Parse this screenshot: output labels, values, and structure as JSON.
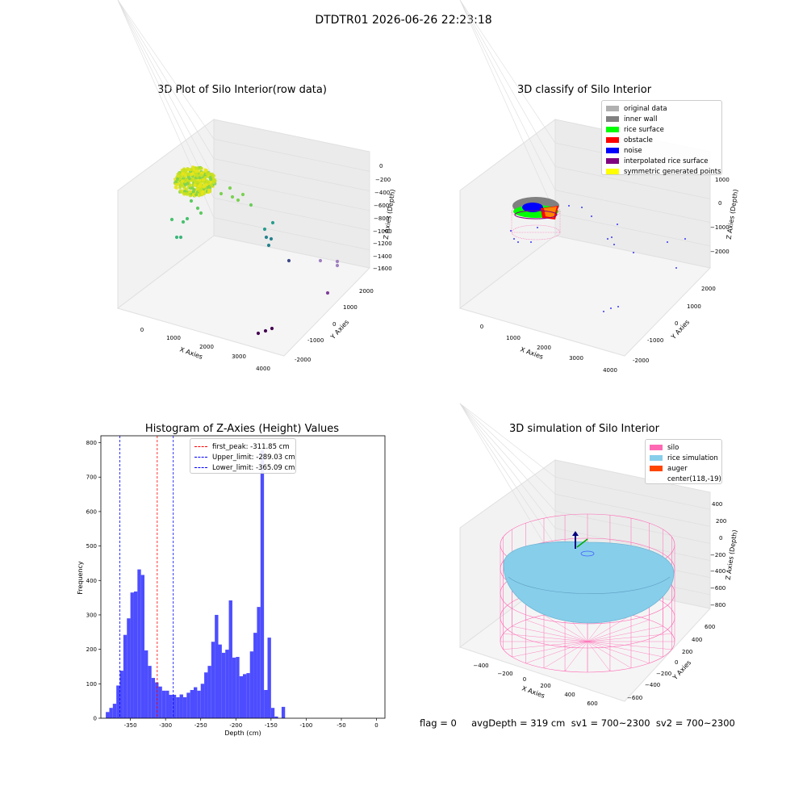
{
  "figure": {
    "suptitle": "DTDTR01 2026-06-26 22:23:18",
    "footer": "flag = 0     avgDepth = 319 cm  sv1 = 700~2300  sv2 = 700~2300"
  },
  "colors": {
    "original": "#b0b0b0",
    "inner_wall": "#808080",
    "rice_surface": "#00ff00",
    "obstacle": "#ff0000",
    "noise": "#0000ff",
    "interpolated": "#800080",
    "symmetric": "#ffff00",
    "silo": "#ff69b4",
    "rice_sim": "#87ceeb",
    "auger": "#ff4500",
    "hist_bar": "#4d4dff"
  },
  "chart_data": [
    {
      "type": "scatter",
      "title": "3D Plot of Silo Interior(row data)",
      "xlabel": "X Axies",
      "ylabel": "Y Axies",
      "zlabel": "Z Axies (Depth)",
      "x_ticks": [
        "0",
        "1000",
        "2000",
        "3000",
        "4000"
      ],
      "y_ticks": [
        "2000",
        "1000",
        "0",
        "-1000",
        "-2000"
      ],
      "z_ticks": [
        "0",
        "−200",
        "−400",
        "−600",
        "−800",
        "−1000",
        "−1200",
        "−1400",
        "−1600"
      ]
    },
    {
      "type": "scatter",
      "title": "3D classify of Silo Interior",
      "xlabel": "X Axies",
      "ylabel": "Y Axies",
      "zlabel": "Z Axies (Depth)",
      "x_ticks": [
        "0",
        "1000",
        "2000",
        "3000",
        "4000"
      ],
      "y_ticks": [
        "2000",
        "1000",
        "0",
        "-1000",
        "-2000"
      ],
      "z_ticks": [
        "1000",
        "0",
        "−1000",
        "−2000"
      ],
      "legend": [
        "original data",
        "inner wall",
        "rice surface",
        "obstacle",
        "noise",
        "interpolated rice surface",
        "symmetric generated points"
      ],
      "legend_position": "top-right"
    },
    {
      "type": "bar",
      "title": "Histogram of Z-Axies (Height) Values",
      "xlabel": "Depth (cm)",
      "ylabel": "Frequency",
      "xlim": [
        -392,
        12
      ],
      "ylim": [
        0,
        820
      ],
      "x_ticks": [
        -350,
        -300,
        -250,
        -200,
        -150,
        -100,
        -50,
        0
      ],
      "y_ticks": [
        0,
        100,
        200,
        300,
        400,
        500,
        600,
        700,
        800
      ],
      "bin_width": 5,
      "bins": [
        [
          -382.5,
          18
        ],
        [
          -377.5,
          30
        ],
        [
          -372.5,
          42
        ],
        [
          -367.5,
          95
        ],
        [
          -362.5,
          138
        ],
        [
          -357.5,
          242
        ],
        [
          -352.5,
          290
        ],
        [
          -347.5,
          365
        ],
        [
          -342.5,
          368
        ],
        [
          -337.5,
          432
        ],
        [
          -332.5,
          416
        ],
        [
          -327.5,
          197
        ],
        [
          -322.5,
          152
        ],
        [
          -317.5,
          117
        ],
        [
          -312.5,
          104
        ],
        [
          -307.5,
          92
        ],
        [
          -302.5,
          80
        ],
        [
          -297.5,
          80
        ],
        [
          -292.5,
          68
        ],
        [
          -287.5,
          68
        ],
        [
          -282.5,
          61
        ],
        [
          -277.5,
          69
        ],
        [
          -272.5,
          61
        ],
        [
          -267.5,
          74
        ],
        [
          -262.5,
          82
        ],
        [
          -257.5,
          90
        ],
        [
          -252.5,
          80
        ],
        [
          -247.5,
          100
        ],
        [
          -242.5,
          133
        ],
        [
          -237.5,
          152
        ],
        [
          -232.5,
          222
        ],
        [
          -227.5,
          300
        ],
        [
          -222.5,
          214
        ],
        [
          -217.5,
          190
        ],
        [
          -212.5,
          199
        ],
        [
          -207.5,
          342
        ],
        [
          -202.5,
          176
        ],
        [
          -197.5,
          178
        ],
        [
          -192.5,
          122
        ],
        [
          -187.5,
          128
        ],
        [
          -182.5,
          131
        ],
        [
          -177.5,
          194
        ],
        [
          -172.5,
          248
        ],
        [
          -167.5,
          323
        ],
        [
          -162.5,
          778
        ],
        [
          -157.5,
          82
        ],
        [
          -152.5,
          234
        ],
        [
          -147.5,
          30
        ],
        [
          -142.5,
          5
        ],
        [
          -137.5,
          0
        ],
        [
          -132.5,
          33
        ]
      ],
      "vlines": [
        {
          "x": -311.85,
          "label": "first_peak: -311.85 cm",
          "color": "#ff0000"
        },
        {
          "x": -289.03,
          "label": "Upper_limit: -289.03 cm",
          "color": "#0000ff"
        },
        {
          "x": -365.09,
          "label": "Lower_limit: -365.09 cm",
          "color": "#0000ff"
        }
      ],
      "legend_position": "top-center"
    },
    {
      "type": "scatter",
      "title": "3D simulation of Silo Interior",
      "xlabel": "X Axies",
      "ylabel": "Y Axies",
      "zlabel": "Z Axies (Depth)",
      "x_ticks": [
        "−400",
        "−200",
        "0",
        "200",
        "400",
        "600"
      ],
      "y_ticks": [
        "600",
        "400",
        "200",
        "0",
        "−200",
        "−400",
        "−600"
      ],
      "z_ticks": [
        "400",
        "200",
        "0",
        "−200",
        "−400",
        "−600",
        "−800"
      ],
      "legend": [
        "silo",
        "rice simulation",
        "auger",
        "center(118,-19)"
      ],
      "legend_position": "top-right"
    }
  ]
}
